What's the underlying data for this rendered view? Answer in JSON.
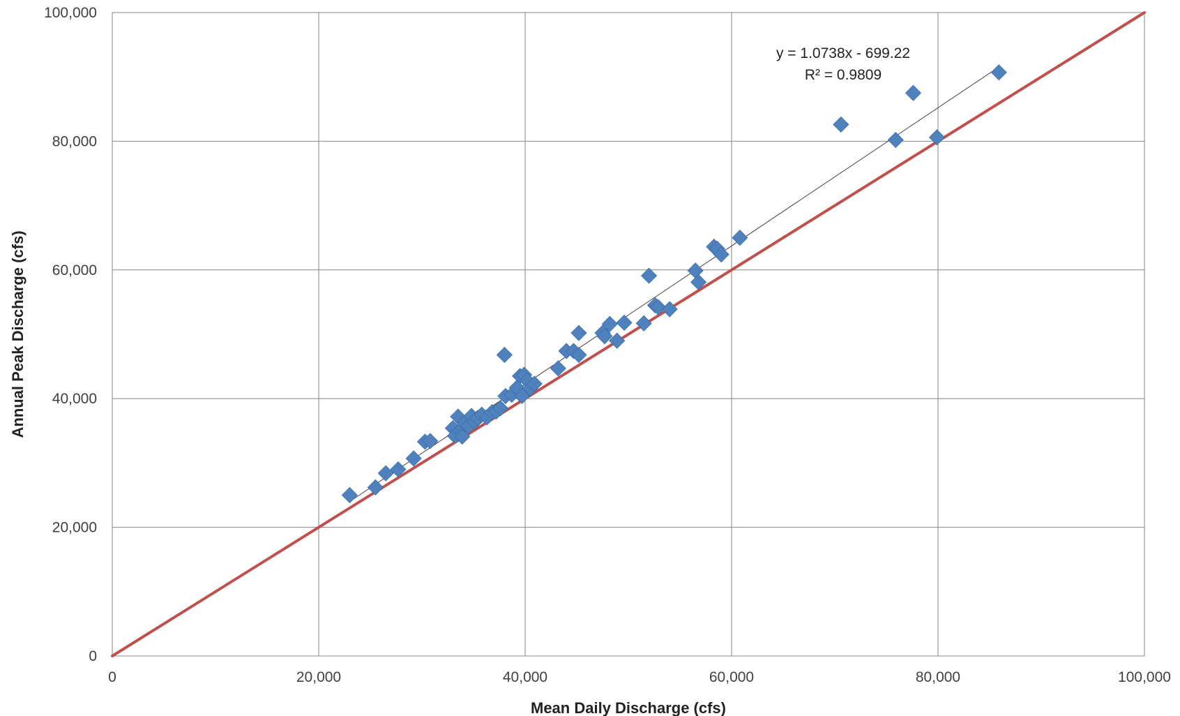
{
  "chart_data": {
    "type": "scatter",
    "title": "",
    "xlabel": "Mean Daily Discharge (cfs)",
    "ylabel": "Annual Peak Discharge (cfs)",
    "xlim": [
      0,
      100000
    ],
    "ylim": [
      0,
      100000
    ],
    "x_ticks": [
      0,
      20000,
      40000,
      60000,
      80000,
      100000
    ],
    "y_ticks": [
      0,
      20000,
      40000,
      60000,
      80000,
      100000
    ],
    "x_tick_labels": [
      "0",
      "20,000",
      "40,000",
      "60,000",
      "80,000",
      "100,000"
    ],
    "y_tick_labels": [
      "0",
      "20,000",
      "40,000",
      "60,000",
      "80,000",
      "100,000"
    ],
    "grid": true,
    "legend": "none",
    "series": [
      {
        "marker": "diamond",
        "color": "#4f81bd",
        "x": [
          23000,
          25500,
          26500,
          27700,
          29200,
          30300,
          30800,
          33000,
          33200,
          33500,
          33700,
          33900,
          34100,
          34500,
          34800,
          35100,
          35400,
          35800,
          36300,
          36800,
          37200,
          37600,
          38000,
          38100,
          38700,
          39200,
          39500,
          39700,
          39900,
          40200,
          40500,
          40900,
          43200,
          44000,
          44700,
          45200,
          45200,
          47500,
          47700,
          48200,
          48900,
          49600,
          51500,
          52000,
          52600,
          52900,
          54000,
          56500,
          56800,
          58300,
          58600,
          59000,
          60800,
          70600,
          75900,
          77600,
          79900,
          85900
        ],
        "y": [
          25000,
          26200,
          28400,
          29000,
          30700,
          33300,
          33400,
          35400,
          34200,
          37200,
          35000,
          34100,
          36200,
          35700,
          37300,
          36400,
          37000,
          37500,
          37100,
          37900,
          38000,
          38500,
          46800,
          40400,
          40600,
          41700,
          43500,
          40400,
          43700,
          42800,
          41600,
          42300,
          44700,
          47400,
          47400,
          50200,
          46800,
          50200,
          49700,
          51600,
          49000,
          51800,
          51700,
          59100,
          54500,
          54200,
          53900,
          59900,
          58100,
          63600,
          63300,
          62400,
          65000,
          82600,
          80200,
          87500,
          80600,
          90700
        ]
      }
    ],
    "trendline": {
      "type": "linear",
      "slope": 1.0738,
      "intercept": -699.22,
      "x_range": [
        23000,
        85900
      ],
      "color": "#404040"
    },
    "reference_line": {
      "label": "1:1 line",
      "x": [
        0,
        100000
      ],
      "y": [
        0,
        100000
      ],
      "color": "#c0504d"
    },
    "annotations": {
      "equation": "y = 1.0738x - 699.22",
      "r_squared": "R² = 0.9809"
    }
  }
}
